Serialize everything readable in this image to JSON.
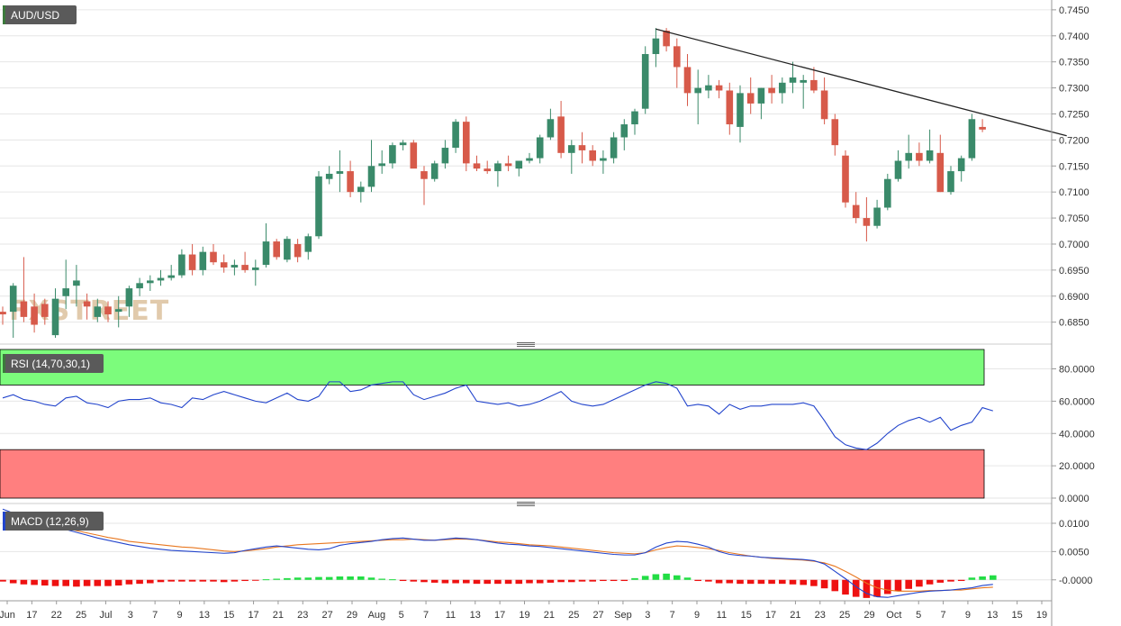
{
  "watermark": "FXSTREET",
  "colors": {
    "bull": "#3a8a6a",
    "bear": "#d75a4a",
    "trendline": "#222222",
    "grid": "#e6e6e6",
    "axis_text": "#333333",
    "badge_bg": "#5a5a5a",
    "badge_accent": "#3c7a3c",
    "rsi_line": "#2244cc",
    "rsi_overbought_zone": "#7cfc7c",
    "rsi_oversold_zone": "#ff7f7f",
    "macd_line": "#2244cc",
    "signal_line": "#e8771f",
    "hist_pos": "#22dd44",
    "hist_neg": "#ee1111"
  },
  "chart_data": [
    {
      "type": "candlestick",
      "title": "AUD/USD",
      "ylim": [
        0.682,
        0.7455
      ],
      "y_ticks": [
        "0.7450",
        "0.7400",
        "0.7350",
        "0.7300",
        "0.7250",
        "0.7200",
        "0.7150",
        "0.7100",
        "0.7050",
        "0.7000",
        "0.6950",
        "0.6900",
        "0.6850"
      ],
      "x_ticks": [
        "Jun",
        "17",
        "22",
        "25",
        "Jul",
        "3",
        "7",
        "9",
        "13",
        "15",
        "17",
        "21",
        "23",
        "27",
        "29",
        "Aug",
        "5",
        "7",
        "11",
        "13",
        "17",
        "19",
        "21",
        "25",
        "27",
        "Sep",
        "3",
        "7",
        "9",
        "11",
        "15",
        "17",
        "21",
        "23",
        "25",
        "29",
        "Oct",
        "5",
        "7",
        "9",
        "13",
        "15",
        "19"
      ],
      "candles": [
        {
          "o": 0.687,
          "h": 0.688,
          "l": 0.6845,
          "c": 0.6865
        },
        {
          "o": 0.687,
          "h": 0.6925,
          "l": 0.682,
          "c": 0.692
        },
        {
          "o": 0.689,
          "h": 0.6975,
          "l": 0.685,
          "c": 0.686
        },
        {
          "o": 0.688,
          "h": 0.6905,
          "l": 0.683,
          "c": 0.6845
        },
        {
          "o": 0.6885,
          "h": 0.6895,
          "l": 0.6845,
          "c": 0.686
        },
        {
          "o": 0.6825,
          "h": 0.6915,
          "l": 0.682,
          "c": 0.6895
        },
        {
          "o": 0.69,
          "h": 0.697,
          "l": 0.6875,
          "c": 0.6915
        },
        {
          "o": 0.692,
          "h": 0.696,
          "l": 0.688,
          "c": 0.693
        },
        {
          "o": 0.689,
          "h": 0.6905,
          "l": 0.6855,
          "c": 0.688
        },
        {
          "o": 0.686,
          "h": 0.6895,
          "l": 0.685,
          "c": 0.688
        },
        {
          "o": 0.688,
          "h": 0.689,
          "l": 0.685,
          "c": 0.6865
        },
        {
          "o": 0.687,
          "h": 0.69,
          "l": 0.684,
          "c": 0.6875
        },
        {
          "o": 0.688,
          "h": 0.692,
          "l": 0.686,
          "c": 0.6915
        },
        {
          "o": 0.6915,
          "h": 0.6935,
          "l": 0.69,
          "c": 0.6925
        },
        {
          "o": 0.6925,
          "h": 0.694,
          "l": 0.691,
          "c": 0.693
        },
        {
          "o": 0.693,
          "h": 0.695,
          "l": 0.692,
          "c": 0.6935
        },
        {
          "o": 0.6935,
          "h": 0.696,
          "l": 0.693,
          "c": 0.694
        },
        {
          "o": 0.694,
          "h": 0.699,
          "l": 0.6935,
          "c": 0.698
        },
        {
          "o": 0.698,
          "h": 0.7,
          "l": 0.694,
          "c": 0.695
        },
        {
          "o": 0.695,
          "h": 0.6995,
          "l": 0.694,
          "c": 0.6985
        },
        {
          "o": 0.6985,
          "h": 0.7,
          "l": 0.696,
          "c": 0.6965
        },
        {
          "o": 0.6965,
          "h": 0.698,
          "l": 0.6945,
          "c": 0.6955
        },
        {
          "o": 0.6955,
          "h": 0.697,
          "l": 0.694,
          "c": 0.696
        },
        {
          "o": 0.696,
          "h": 0.6985,
          "l": 0.6945,
          "c": 0.695
        },
        {
          "o": 0.695,
          "h": 0.697,
          "l": 0.692,
          "c": 0.6955
        },
        {
          "o": 0.696,
          "h": 0.704,
          "l": 0.6955,
          "c": 0.7005
        },
        {
          "o": 0.7005,
          "h": 0.701,
          "l": 0.697,
          "c": 0.6975
        },
        {
          "o": 0.697,
          "h": 0.7015,
          "l": 0.6965,
          "c": 0.701
        },
        {
          "o": 0.7,
          "h": 0.701,
          "l": 0.6965,
          "c": 0.6975
        },
        {
          "o": 0.6985,
          "h": 0.702,
          "l": 0.697,
          "c": 0.7015
        },
        {
          "o": 0.7015,
          "h": 0.714,
          "l": 0.701,
          "c": 0.713
        },
        {
          "o": 0.7125,
          "h": 0.715,
          "l": 0.7115,
          "c": 0.7135
        },
        {
          "o": 0.7135,
          "h": 0.718,
          "l": 0.71,
          "c": 0.714
        },
        {
          "o": 0.714,
          "h": 0.716,
          "l": 0.709,
          "c": 0.71
        },
        {
          "o": 0.71,
          "h": 0.712,
          "l": 0.708,
          "c": 0.711
        },
        {
          "o": 0.711,
          "h": 0.72,
          "l": 0.71,
          "c": 0.715
        },
        {
          "o": 0.715,
          "h": 0.718,
          "l": 0.7135,
          "c": 0.7155
        },
        {
          "o": 0.7155,
          "h": 0.7195,
          "l": 0.7145,
          "c": 0.719
        },
        {
          "o": 0.719,
          "h": 0.72,
          "l": 0.718,
          "c": 0.7195
        },
        {
          "o": 0.7195,
          "h": 0.72,
          "l": 0.715,
          "c": 0.7145
        },
        {
          "o": 0.714,
          "h": 0.715,
          "l": 0.7075,
          "c": 0.7125
        },
        {
          "o": 0.7125,
          "h": 0.716,
          "l": 0.712,
          "c": 0.7155
        },
        {
          "o": 0.7155,
          "h": 0.72,
          "l": 0.7145,
          "c": 0.7185
        },
        {
          "o": 0.7185,
          "h": 0.724,
          "l": 0.7175,
          "c": 0.7235
        },
        {
          "o": 0.7235,
          "h": 0.7245,
          "l": 0.714,
          "c": 0.7155
        },
        {
          "o": 0.7155,
          "h": 0.717,
          "l": 0.714,
          "c": 0.7145
        },
        {
          "o": 0.7145,
          "h": 0.716,
          "l": 0.7135,
          "c": 0.714
        },
        {
          "o": 0.714,
          "h": 0.716,
          "l": 0.711,
          "c": 0.7155
        },
        {
          "o": 0.7155,
          "h": 0.717,
          "l": 0.714,
          "c": 0.715
        },
        {
          "o": 0.7145,
          "h": 0.716,
          "l": 0.713,
          "c": 0.716
        },
        {
          "o": 0.716,
          "h": 0.7175,
          "l": 0.7155,
          "c": 0.7165
        },
        {
          "o": 0.7165,
          "h": 0.721,
          "l": 0.7155,
          "c": 0.7205
        },
        {
          "o": 0.7205,
          "h": 0.726,
          "l": 0.72,
          "c": 0.724
        },
        {
          "o": 0.7245,
          "h": 0.7275,
          "l": 0.7165,
          "c": 0.7175
        },
        {
          "o": 0.7175,
          "h": 0.72,
          "l": 0.7135,
          "c": 0.719
        },
        {
          "o": 0.719,
          "h": 0.7215,
          "l": 0.7155,
          "c": 0.718
        },
        {
          "o": 0.718,
          "h": 0.719,
          "l": 0.715,
          "c": 0.716
        },
        {
          "o": 0.716,
          "h": 0.718,
          "l": 0.7135,
          "c": 0.7165
        },
        {
          "o": 0.7165,
          "h": 0.7215,
          "l": 0.7155,
          "c": 0.7205
        },
        {
          "o": 0.7205,
          "h": 0.724,
          "l": 0.718,
          "c": 0.723
        },
        {
          "o": 0.723,
          "h": 0.726,
          "l": 0.721,
          "c": 0.7255
        },
        {
          "o": 0.726,
          "h": 0.738,
          "l": 0.725,
          "c": 0.7365
        },
        {
          "o": 0.7365,
          "h": 0.7415,
          "l": 0.734,
          "c": 0.7395
        },
        {
          "o": 0.741,
          "h": 0.7415,
          "l": 0.737,
          "c": 0.738
        },
        {
          "o": 0.738,
          "h": 0.7395,
          "l": 0.73,
          "c": 0.734
        },
        {
          "o": 0.734,
          "h": 0.7365,
          "l": 0.7265,
          "c": 0.729
        },
        {
          "o": 0.729,
          "h": 0.7335,
          "l": 0.723,
          "c": 0.73
        },
        {
          "o": 0.7295,
          "h": 0.7325,
          "l": 0.728,
          "c": 0.7305
        },
        {
          "o": 0.7305,
          "h": 0.7315,
          "l": 0.728,
          "c": 0.7295
        },
        {
          "o": 0.7295,
          "h": 0.731,
          "l": 0.721,
          "c": 0.723
        },
        {
          "o": 0.7225,
          "h": 0.7305,
          "l": 0.7195,
          "c": 0.729
        },
        {
          "o": 0.729,
          "h": 0.732,
          "l": 0.725,
          "c": 0.727
        },
        {
          "o": 0.727,
          "h": 0.73,
          "l": 0.724,
          "c": 0.73
        },
        {
          "o": 0.73,
          "h": 0.7325,
          "l": 0.727,
          "c": 0.729
        },
        {
          "o": 0.729,
          "h": 0.732,
          "l": 0.727,
          "c": 0.731
        },
        {
          "o": 0.731,
          "h": 0.735,
          "l": 0.729,
          "c": 0.732
        },
        {
          "o": 0.731,
          "h": 0.7325,
          "l": 0.726,
          "c": 0.7315
        },
        {
          "o": 0.7315,
          "h": 0.734,
          "l": 0.729,
          "c": 0.7295
        },
        {
          "o": 0.7295,
          "h": 0.732,
          "l": 0.723,
          "c": 0.724
        },
        {
          "o": 0.724,
          "h": 0.725,
          "l": 0.717,
          "c": 0.719
        },
        {
          "o": 0.717,
          "h": 0.718,
          "l": 0.707,
          "c": 0.708
        },
        {
          "o": 0.7075,
          "h": 0.71,
          "l": 0.704,
          "c": 0.705
        },
        {
          "o": 0.705,
          "h": 0.709,
          "l": 0.7005,
          "c": 0.7035
        },
        {
          "o": 0.7035,
          "h": 0.7085,
          "l": 0.703,
          "c": 0.707
        },
        {
          "o": 0.707,
          "h": 0.7135,
          "l": 0.7065,
          "c": 0.7125
        },
        {
          "o": 0.7125,
          "h": 0.718,
          "l": 0.712,
          "c": 0.716
        },
        {
          "o": 0.716,
          "h": 0.721,
          "l": 0.7145,
          "c": 0.7175
        },
        {
          "o": 0.7175,
          "h": 0.7195,
          "l": 0.715,
          "c": 0.716
        },
        {
          "o": 0.716,
          "h": 0.722,
          "l": 0.7155,
          "c": 0.718
        },
        {
          "o": 0.7175,
          "h": 0.721,
          "l": 0.71,
          "c": 0.71
        },
        {
          "o": 0.71,
          "h": 0.715,
          "l": 0.7095,
          "c": 0.714
        },
        {
          "o": 0.714,
          "h": 0.717,
          "l": 0.712,
          "c": 0.7165
        },
        {
          "o": 0.7165,
          "h": 0.725,
          "l": 0.716,
          "c": 0.724
        },
        {
          "o": 0.7225,
          "h": 0.724,
          "l": 0.7215,
          "c": 0.722
        }
      ],
      "trendline": {
        "from": {
          "index": 62,
          "price": 0.7413
        },
        "to": {
          "index": 101,
          "price": 0.7208
        }
      }
    },
    {
      "type": "line",
      "title": "RSI (14,70,30,1)",
      "ylim": [
        0,
        92
      ],
      "y_ticks": [
        "80.0000",
        "60.0000",
        "40.0000",
        "20.0000",
        "0.0000"
      ],
      "zones": {
        "overbought": [
          70,
          92
        ],
        "oversold": [
          0,
          30
        ]
      },
      "values": [
        62,
        64,
        61,
        60,
        58,
        57,
        62,
        63,
        59,
        58,
        56,
        60,
        61,
        61,
        62,
        59,
        58,
        56,
        62,
        61,
        64,
        66,
        64,
        62,
        60,
        59,
        62,
        65,
        61,
        60,
        63,
        72,
        72,
        66,
        67,
        70,
        71,
        72,
        72,
        64,
        61,
        63,
        65,
        68,
        70,
        60,
        59,
        58,
        59,
        57,
        58,
        60,
        63,
        66,
        60,
        58,
        57,
        58,
        61,
        64,
        67,
        70,
        72,
        71,
        68,
        57,
        58,
        57,
        52,
        58,
        55,
        57,
        57,
        58,
        58,
        58,
        59,
        57,
        48,
        38,
        33,
        31,
        30,
        34,
        40,
        45,
        48,
        50,
        47,
        50,
        42,
        45,
        47,
        56,
        54
      ]
    },
    {
      "type": "line",
      "title": "MACD (12,26,9)",
      "ylim": [
        -0.0037,
        0.0127
      ],
      "y_ticks": [
        "0.0100",
        "0.0050",
        "-0.0000"
      ],
      "macd": [
        0.0125,
        0.0118,
        0.0112,
        0.0106,
        0.01,
        0.0094,
        0.0089,
        0.0084,
        0.0079,
        0.0074,
        0.007,
        0.0066,
        0.0062,
        0.0059,
        0.0056,
        0.0054,
        0.0052,
        0.0051,
        0.005,
        0.0049,
        0.0048,
        0.0047,
        0.0048,
        0.0052,
        0.0055,
        0.0058,
        0.006,
        0.0058,
        0.0056,
        0.0054,
        0.0053,
        0.0055,
        0.0061,
        0.0064,
        0.0066,
        0.0068,
        0.0071,
        0.0073,
        0.0074,
        0.0072,
        0.007,
        0.007,
        0.0072,
        0.0074,
        0.0073,
        0.0071,
        0.0068,
        0.0065,
        0.0063,
        0.0062,
        0.006,
        0.0059,
        0.0057,
        0.0055,
        0.0053,
        0.0051,
        0.0049,
        0.0047,
        0.0045,
        0.0044,
        0.0044,
        0.0048,
        0.0058,
        0.0065,
        0.0068,
        0.0067,
        0.0063,
        0.0058,
        0.005,
        0.0045,
        0.0043,
        0.0042,
        0.004,
        0.0039,
        0.0038,
        0.0037,
        0.0036,
        0.0034,
        0.0028,
        0.0015,
        0.0002,
        -0.0012,
        -0.0024,
        -0.003,
        -0.0031,
        -0.0028,
        -0.0025,
        -0.0022,
        -0.002,
        -0.0019,
        -0.0018,
        -0.0016,
        -0.0014,
        -0.001,
        -0.0008
      ],
      "signal": [
        0.012,
        0.0116,
        0.0111,
        0.0106,
        0.0101,
        0.0096,
        0.0092,
        0.0087,
        0.0083,
        0.0079,
        0.0075,
        0.0072,
        0.0068,
        0.0066,
        0.0064,
        0.0062,
        0.006,
        0.0058,
        0.0057,
        0.0055,
        0.0053,
        0.0051,
        0.005,
        0.0051,
        0.0053,
        0.0055,
        0.0058,
        0.006,
        0.0062,
        0.0063,
        0.0064,
        0.0065,
        0.0066,
        0.0067,
        0.0068,
        0.0069,
        0.007,
        0.0071,
        0.0071,
        0.0072,
        0.0071,
        0.007,
        0.0071,
        0.0072,
        0.0072,
        0.0071,
        0.0069,
        0.0067,
        0.0066,
        0.0064,
        0.0062,
        0.0061,
        0.006,
        0.0058,
        0.0056,
        0.0054,
        0.0052,
        0.005,
        0.0048,
        0.0047,
        0.0046,
        0.0048,
        0.0053,
        0.0057,
        0.006,
        0.0059,
        0.0057,
        0.0055,
        0.0052,
        0.0048,
        0.0045,
        0.0042,
        0.004,
        0.0038,
        0.0037,
        0.0036,
        0.0035,
        0.0033,
        0.003,
        0.0024,
        0.0015,
        0.0005,
        -0.0006,
        -0.0014,
        -0.0018,
        -0.002,
        -0.002,
        -0.002,
        -0.0019,
        -0.0019,
        -0.0018,
        -0.0018,
        -0.0016,
        -0.0014,
        -0.0013
      ],
      "histogram": [
        -0.0003,
        -0.0006,
        -0.0008,
        -0.0009,
        -0.001,
        -0.0011,
        -0.0011,
        -0.0012,
        -0.0011,
        -0.0011,
        -0.0011,
        -0.001,
        -0.0008,
        -0.0007,
        -0.0006,
        -0.0004,
        -0.0003,
        -0.0003,
        -0.0003,
        -0.0003,
        -0.0003,
        -0.0004,
        -0.0003,
        -0.0002,
        -0.0001,
        0.0001,
        0.0002,
        0.0003,
        0.0004,
        0.0004,
        0.0005,
        0.0005,
        0.0006,
        0.0006,
        0.0006,
        0.0004,
        0.0002,
        0.0001,
        -0.0002,
        -0.0003,
        -0.0004,
        -0.0005,
        -0.0006,
        -0.0006,
        -0.0006,
        -0.0007,
        -0.0007,
        -0.0007,
        -0.0007,
        -0.0007,
        -0.0006,
        -0.0006,
        -0.0005,
        -0.0004,
        -0.0004,
        -0.0003,
        -0.0003,
        -0.0002,
        -0.0002,
        -0.0002,
        0.0003,
        0.0007,
        0.001,
        0.0011,
        0.0008,
        0.0004,
        -0.0002,
        -0.0003,
        -0.0006,
        -0.0006,
        -0.0007,
        -0.0007,
        -0.0007,
        -0.0007,
        -0.0007,
        -0.0008,
        -0.0009,
        -0.0011,
        -0.0015,
        -0.002,
        -0.0026,
        -0.003,
        -0.0032,
        -0.003,
        -0.0025,
        -0.002,
        -0.0016,
        -0.0012,
        -0.0008,
        -0.0005,
        -0.0003,
        -0.0002,
        0.0004,
        0.0006,
        0.0008
      ]
    }
  ]
}
